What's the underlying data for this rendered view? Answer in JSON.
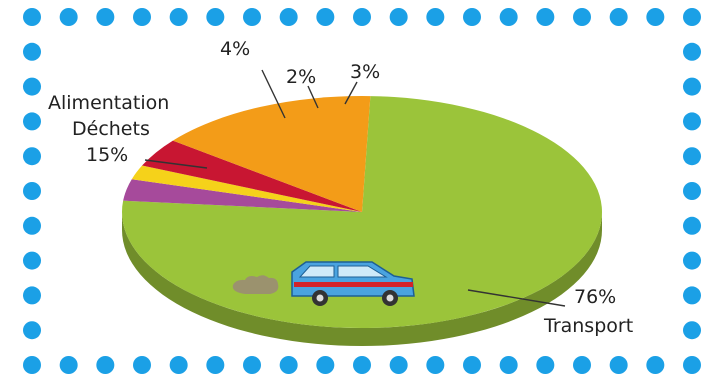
{
  "chart_data": {
    "type": "pie",
    "title": "",
    "slices": [
      {
        "label": "Transport",
        "value": 76,
        "value_text": "76%",
        "color": "#9bc43a"
      },
      {
        "label": "",
        "value": 3,
        "value_text": "3%",
        "color": "#a64a9b"
      },
      {
        "label": "",
        "value": 2,
        "value_text": "2%",
        "color": "#f5d21a"
      },
      {
        "label": "",
        "value": 4,
        "value_text": "4%",
        "color": "#c81632"
      },
      {
        "label": "Alimentation Déchets",
        "label_line1": "Alimentation",
        "label_line2": "Déchets",
        "value": 15,
        "value_text": "15%",
        "color": "#f39c18"
      }
    ],
    "style": "3d",
    "legend": "none"
  },
  "frame": {
    "dot_color": "#1ba0e6",
    "style": "dotted-border"
  },
  "illustration": {
    "icon": "car-icon",
    "exhaust_icon": "smoke-cloud-icon",
    "car_body_color": "#4aa3e0",
    "car_stripe_color": "#d2232a"
  }
}
